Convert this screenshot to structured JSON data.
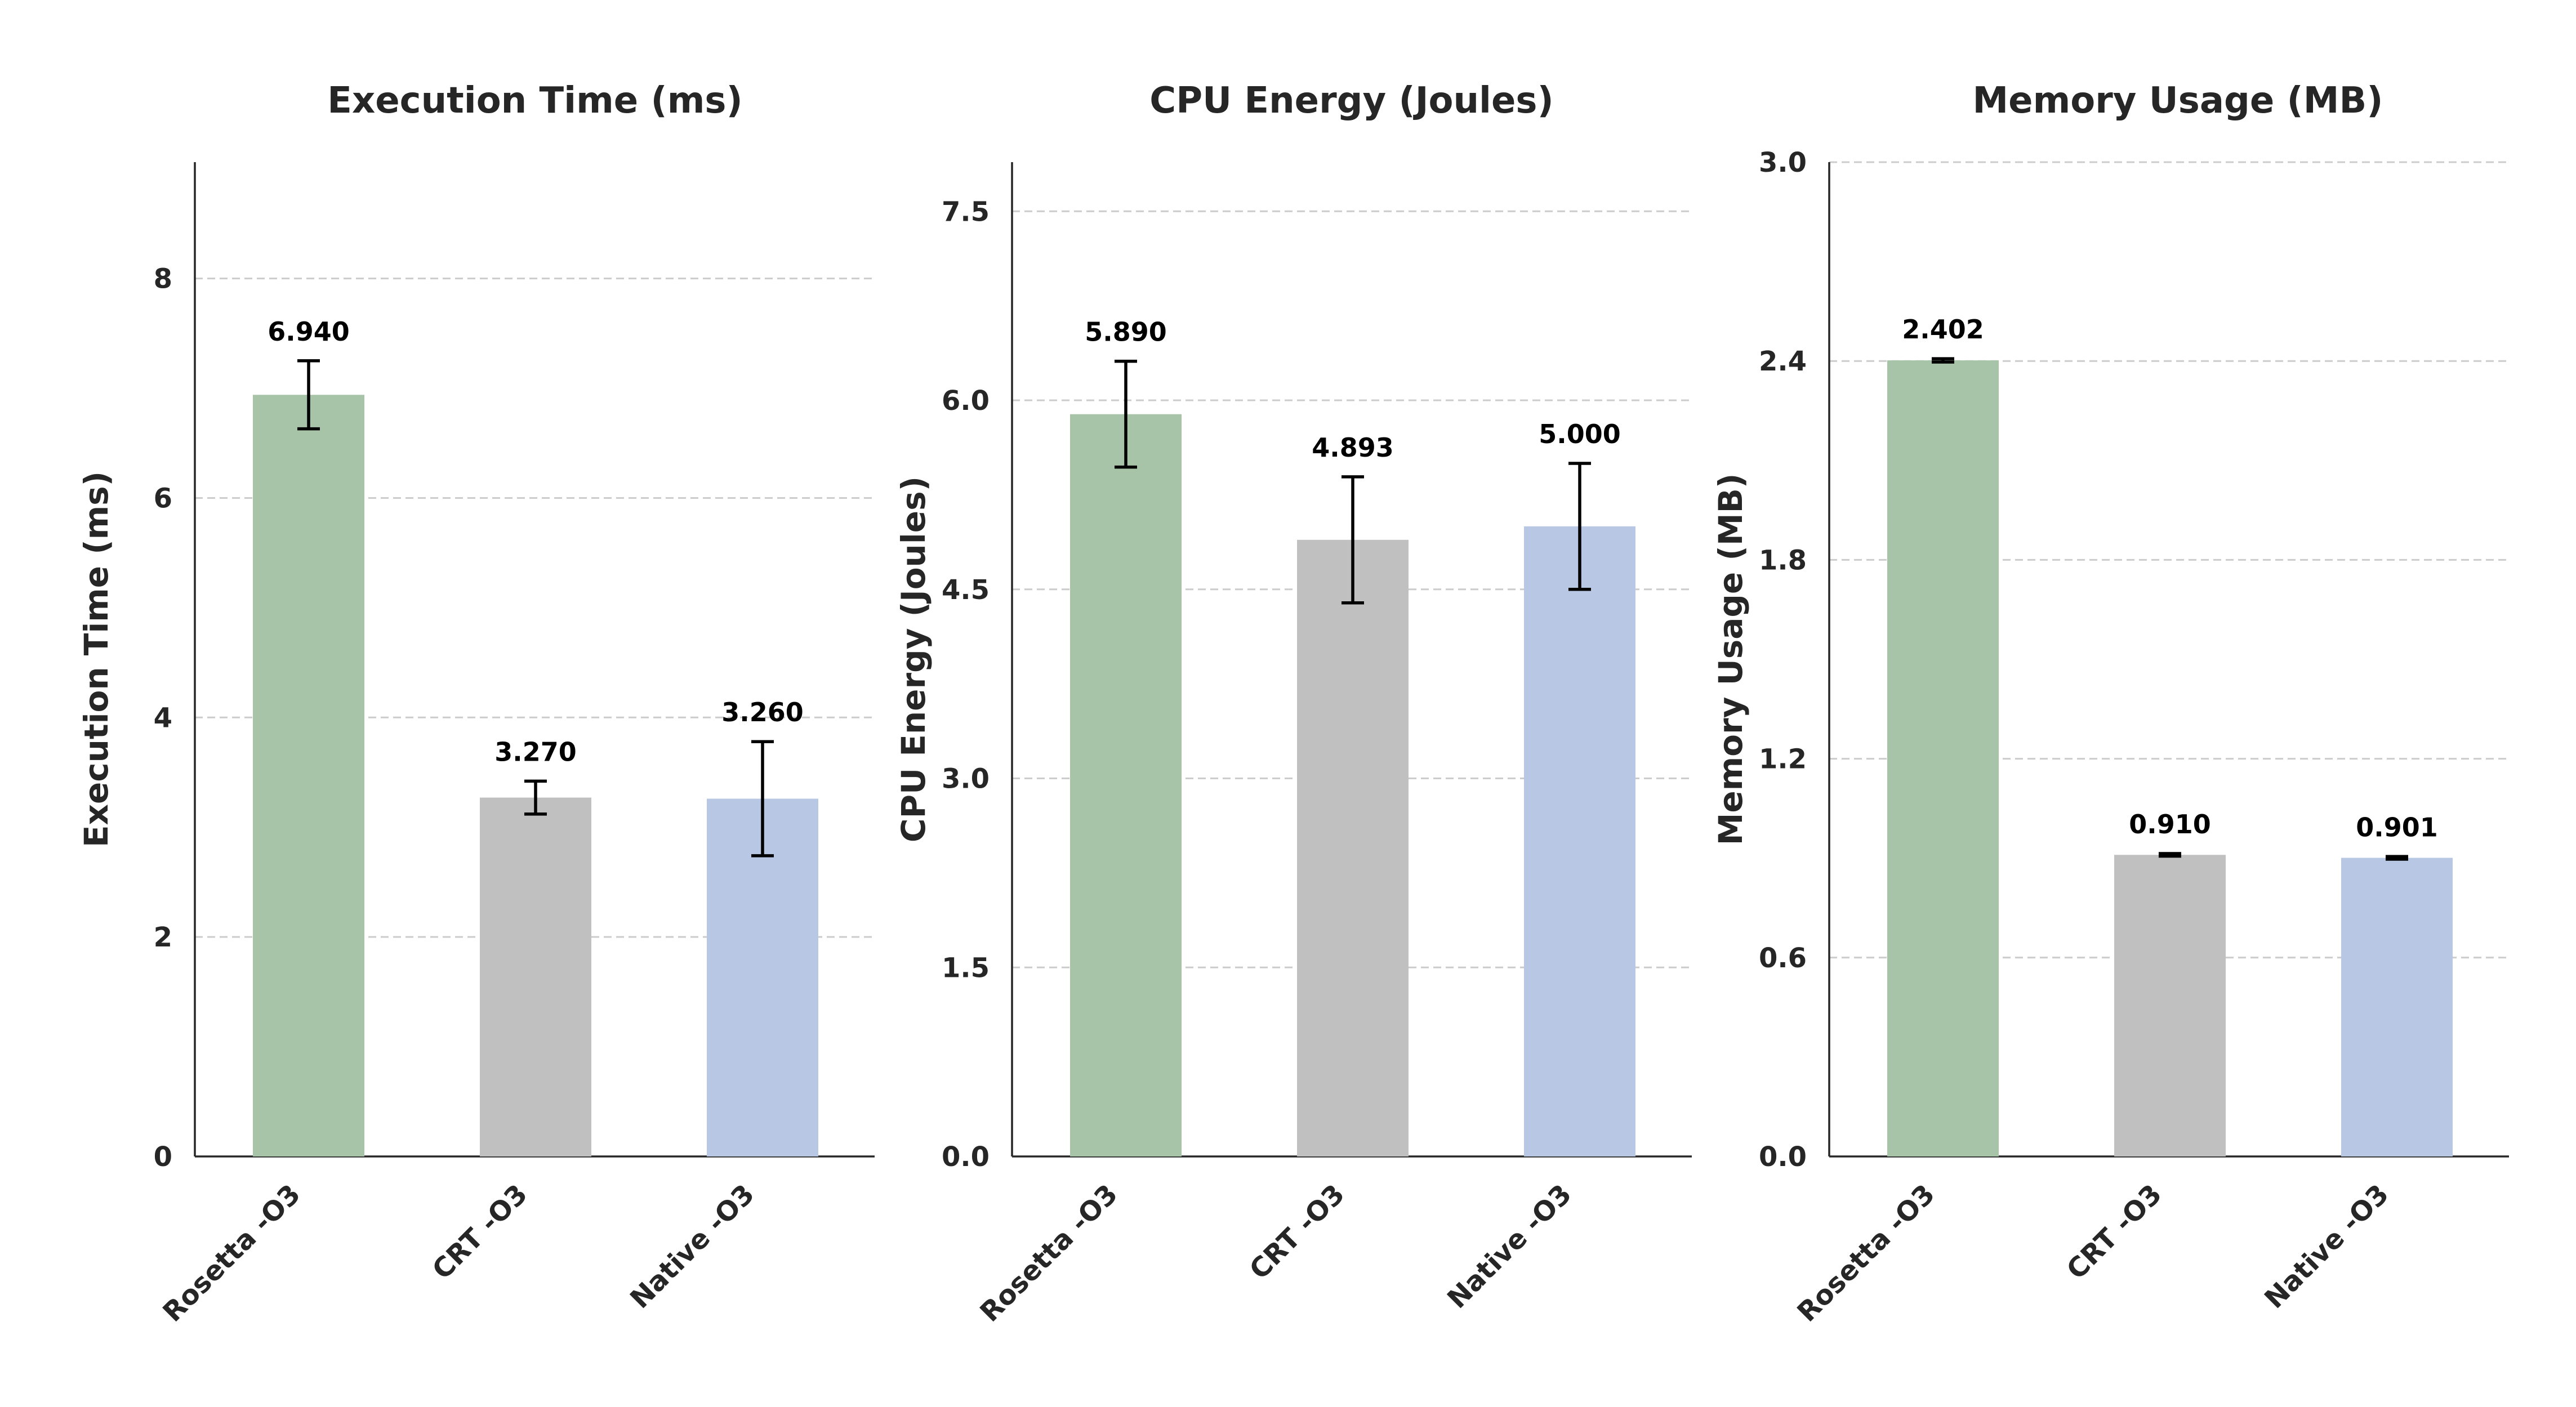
{
  "chart_data": [
    {
      "type": "bar",
      "title": "Execution Time (ms)",
      "xlabel": "",
      "ylabel": "Execution Time (ms)",
      "categories": [
        "Rosetta -O3",
        "CRT -O3",
        "Native -O3"
      ],
      "values": [
        6.94,
        3.27,
        3.26
      ],
      "value_labels": [
        "6.940",
        "3.270",
        "3.260"
      ],
      "error": [
        0.31,
        0.15,
        0.52
      ],
      "ylim": [
        0,
        9.06
      ],
      "yticks": [
        0,
        2,
        4,
        6,
        8
      ],
      "ytick_labels": [
        "0",
        "2",
        "4",
        "6",
        "8"
      ],
      "grid": true,
      "colors": [
        "#a8c4a8",
        "#c0c0c0",
        "#b8c8e4"
      ]
    },
    {
      "type": "bar",
      "title": "CPU Energy (Joules)",
      "xlabel": "",
      "ylabel": "CPU Energy (Joules)",
      "categories": [
        "Rosetta -O3",
        "CRT -O3",
        "Native -O3"
      ],
      "values": [
        5.89,
        4.893,
        5.0
      ],
      "value_labels": [
        "5.890",
        "4.893",
        "5.000"
      ],
      "error": [
        0.42,
        0.5,
        0.5
      ],
      "ylim": [
        0,
        7.89
      ],
      "yticks": [
        0,
        1.5,
        3,
        4.5,
        6,
        7.5
      ],
      "ytick_labels": [
        "0.0",
        "1.5",
        "3.0",
        "4.5",
        "6.0",
        "7.5"
      ],
      "grid": true,
      "colors": [
        "#a8c4a8",
        "#c0c0c0",
        "#b8c8e4"
      ]
    },
    {
      "type": "bar",
      "title": "Memory Usage (MB)",
      "xlabel": "",
      "ylabel": "Memory Usage (MB)",
      "categories": [
        "Rosetta -O3",
        "CRT -O3",
        "Native -O3"
      ],
      "values": [
        2.402,
        0.91,
        0.901
      ],
      "value_labels": [
        "2.402",
        "0.910",
        "0.901"
      ],
      "error": [
        0.005,
        0.004,
        0.004
      ],
      "ylim": [
        0,
        3.0
      ],
      "yticks": [
        0,
        0.6,
        1.2,
        1.8,
        2.4,
        3.0
      ],
      "ytick_labels": [
        "0.0",
        "0.6",
        "1.2",
        "1.8",
        "2.4",
        "3.0"
      ],
      "grid": true,
      "colors": [
        "#a8c4a8",
        "#c0c0c0",
        "#b8c8e4"
      ]
    }
  ]
}
